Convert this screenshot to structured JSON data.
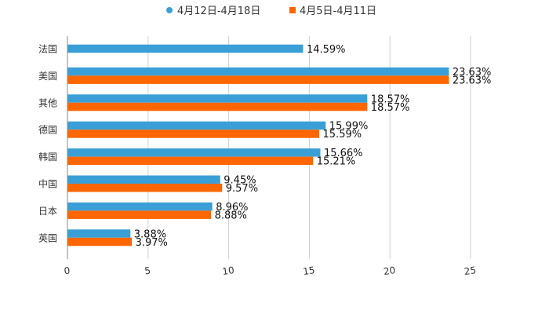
{
  "chart_data": {
    "type": "bar",
    "orientation": "horizontal",
    "title": "",
    "xlabel": "",
    "ylabel": "",
    "xlim": [
      0,
      25
    ],
    "ticks": [
      "0",
      "5",
      "10",
      "15",
      "20",
      "25"
    ],
    "tick_values": [
      0,
      5,
      10,
      15,
      20,
      25
    ],
    "categories": [
      "法国",
      "美国",
      "其他",
      "德国",
      "韩国",
      "中国",
      "日本",
      "英国"
    ],
    "series": [
      {
        "name": "4月12日-4月18日",
        "color": "#3a9fd6",
        "values": [
          14.59,
          23.63,
          18.57,
          15.99,
          15.66,
          9.45,
          8.96,
          3.88
        ],
        "labels": [
          "14.59%",
          "23.63%",
          "18.57%",
          "15.99%",
          "15.66%",
          "9.45%",
          "8.96%",
          "3.88%"
        ]
      },
      {
        "name": "4月5日-4月11日",
        "color": "#ff6600",
        "values": [
          null,
          23.63,
          18.57,
          15.59,
          15.21,
          9.57,
          8.88,
          3.97
        ],
        "labels": [
          null,
          "23.63%",
          "18.57%",
          "15.59%",
          "15.21%",
          "9.57%",
          "8.88%",
          "3.97%"
        ]
      }
    ],
    "grid": true,
    "legend_position": "top-center"
  }
}
